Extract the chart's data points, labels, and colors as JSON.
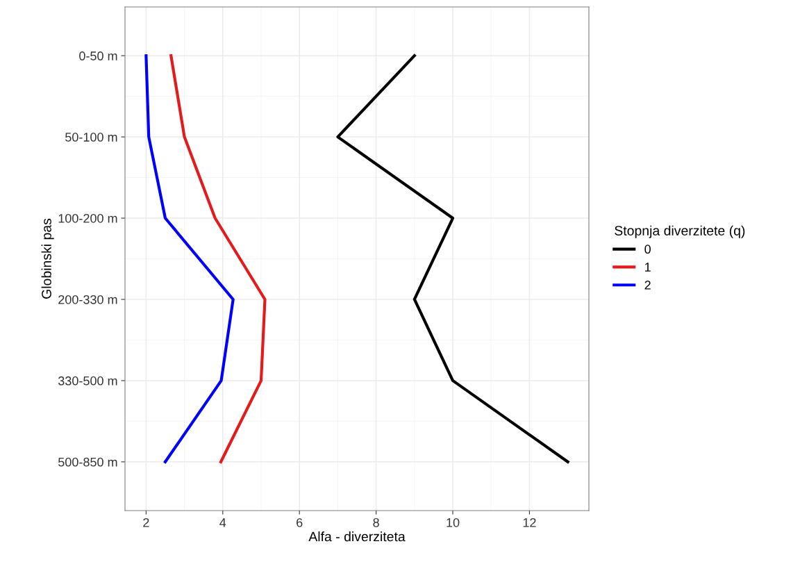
{
  "chart_data": {
    "type": "line",
    "orientation": "horizontal",
    "xlabel": "Alfa - diverziteta",
    "ylabel": "Globinski pas",
    "legend_title": "Stopnja diverzitete (q)",
    "legend": "right",
    "grid": true,
    "categories": [
      "0-50 m",
      "50-100 m",
      "100-200 m",
      "200-330 m",
      "330-500 m",
      "500-850 m"
    ],
    "xlim": [
      1.45,
      13.55
    ],
    "xticks": [
      2,
      4,
      6,
      8,
      10,
      12
    ],
    "series": [
      {
        "name": "0",
        "color": "#000000",
        "values": [
          9,
          7,
          10,
          9,
          10,
          13
        ]
      },
      {
        "name": "1",
        "color": "#e41a1c",
        "values": [
          2.65,
          3.0,
          3.8,
          5.1,
          5.0,
          3.95
        ]
      },
      {
        "name": "2",
        "color": "#0000ff",
        "values": [
          2.0,
          2.07,
          2.5,
          4.27,
          3.96,
          2.5
        ]
      }
    ]
  }
}
